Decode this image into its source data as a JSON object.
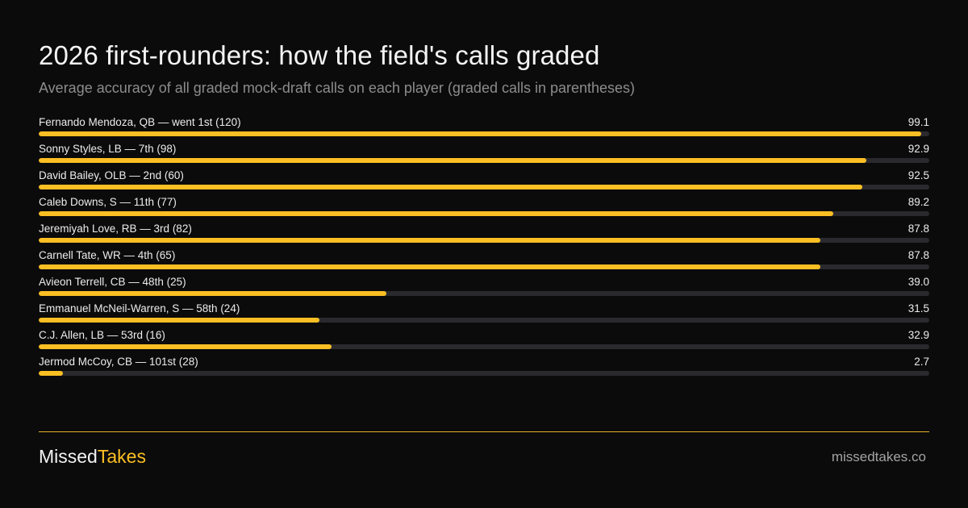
{
  "chart_data": {
    "type": "bar",
    "orientation": "horizontal",
    "title": "2026 first-rounders:  how the field's calls graded",
    "subtitle": "Average accuracy of all graded mock-draft  calls on each player (graded calls in parentheses)",
    "xlim": [
      0,
      100
    ],
    "grid": false,
    "categories": [
      "Fernando Mendoza, QB — went 1st (120)",
      "Sonny Styles, LB — 7th (98)",
      "David Bailey, OLB — 2nd (60)",
      "Caleb Downs, S — 11th (77)",
      "Jeremiyah Love, RB — 3rd (82)",
      "Carnell Tate, WR — 4th (65)",
      "Avieon Terrell, CB — 48th (25)",
      "Emmanuel McNeil-Warren, S — 58th (24)",
      "C.J. Allen, LB — 53rd (16)",
      "Jermod McCoy, CB — 101st (28)"
    ],
    "values": [
      99.1,
      92.9,
      92.5,
      89.2,
      87.8,
      87.8,
      39.0,
      31.5,
      32.9,
      2.7
    ],
    "value_labels": [
      "99.1",
      "92.9",
      "92.5",
      "89.2",
      "87.8",
      "87.8",
      "39.0",
      "31.5",
      "32.9",
      "2.7"
    ]
  },
  "colors": {
    "background": "#0b0b0b",
    "bar": "#fbbf24",
    "track": "#2a2a2e",
    "accent": "#fbbf24"
  },
  "footer": {
    "brand_part1": "Missed",
    "brand_part2": "Takes",
    "site": "missedtakes.co"
  }
}
